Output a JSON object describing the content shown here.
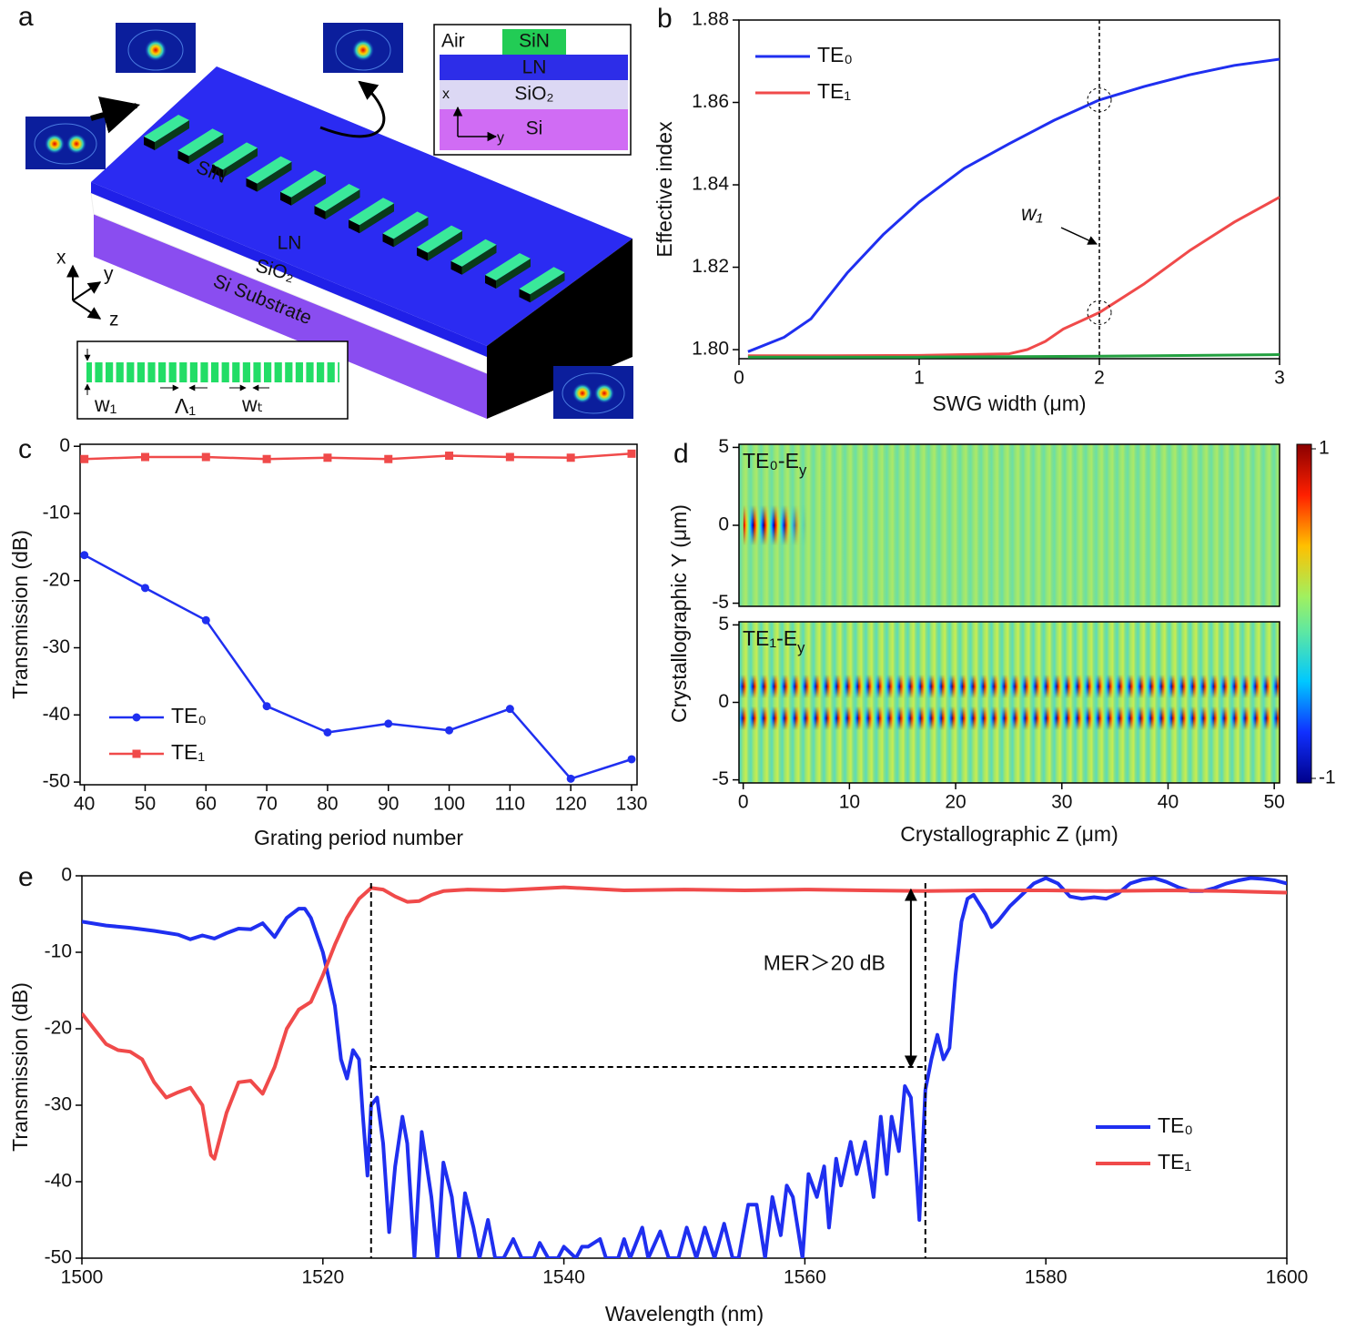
{
  "diagram": {
    "label": "a",
    "cross_section": {
      "air": "Air",
      "sin": "SiN",
      "ln": "LN",
      "sio2": "SiO₂",
      "si": "Si",
      "x": "x",
      "y": "y"
    },
    "device": {
      "sin": "SiN",
      "ln": "LN",
      "sio2": "SiO₂",
      "substrate": "Si Substrate"
    },
    "axes": {
      "x": "x",
      "y": "y",
      "z": "z"
    },
    "inset": {
      "w1": "w₁",
      "period": "Λ₁",
      "wt": "wₜ"
    }
  },
  "chart_data": [
    {
      "type": "line",
      "label": "b",
      "x_label": "SWG width (μm)",
      "y_label": "Effective index",
      "xlim": [
        0,
        3
      ],
      "xticks": [
        0,
        1,
        2,
        3
      ],
      "ylim": [
        1.7978,
        1.88
      ],
      "yticks": [
        {
          "value": 1.8,
          "label": "1.80"
        },
        1.82,
        1.84,
        1.86,
        1.88
      ],
      "legend": "upper left",
      "vline": 2,
      "annotation": "w₁",
      "series": [
        {
          "name": "TE₀",
          "color": "#1f2ff0",
          "x": [
            0.05,
            0.25,
            0.4,
            0.6,
            0.8,
            1,
            1.25,
            1.5,
            1.75,
            2,
            2.25,
            2.5,
            2.75,
            3
          ],
          "values": [
            1.7995,
            1.803,
            1.8075,
            1.8186,
            1.8279,
            1.8358,
            1.844,
            1.85,
            1.8557,
            1.8606,
            1.8639,
            1.8667,
            1.869,
            1.8705
          ]
        },
        {
          "name": "TE₁",
          "color": "#f04a4a",
          "x": [
            0.05,
            0.5,
            1,
            1.5,
            1.6,
            1.7,
            1.8,
            1.9,
            2,
            2.25,
            2.5,
            2.75,
            3
          ],
          "values": [
            1.7985,
            1.7985,
            1.7986,
            1.799,
            1.8,
            1.802,
            1.805,
            1.807,
            1.809,
            1.816,
            1.824,
            1.831,
            1.837
          ]
        },
        {
          "color": "#22a040",
          "x": [
            0.05,
            1,
            2,
            3
          ],
          "values": [
            1.7982,
            1.7982,
            1.7984,
            1.7988
          ]
        }
      ]
    },
    {
      "type": "line",
      "label": "c",
      "x_label": "Grating period number",
      "y_label": "Transmission (dB)",
      "xlim": [
        39.3,
        130.9
      ],
      "xticks": [
        40,
        50,
        60,
        70,
        80,
        90,
        100,
        110,
        120,
        130
      ],
      "ylim": [
        -50.4,
        0.3
      ],
      "yticks": [
        0,
        -10,
        -20,
        -30,
        -40,
        -50
      ],
      "legend": "lower left",
      "x": [
        40,
        50,
        60,
        70,
        80,
        90,
        100,
        110,
        120,
        130
      ],
      "series": [
        {
          "name": "TE₀",
          "color": "#1f2ff0",
          "marker": "circle",
          "values": [
            -16.2,
            -21.1,
            -25.9,
            -38.7,
            -42.6,
            -41.3,
            -42.3,
            -39.1,
            -49.5,
            -46.6
          ]
        },
        {
          "name": "TE₁",
          "color": "#f04a4a",
          "marker": "square",
          "values": [
            -1.9,
            -1.6,
            -1.6,
            -1.9,
            -1.7,
            -1.9,
            -1.4,
            -1.6,
            -1.7,
            -1.1
          ]
        }
      ]
    },
    {
      "type": "heatmap",
      "label": "d",
      "x_label": "Crystallographic Z  (μm)",
      "y_label": "Crystallographic Y  (μm)",
      "xlim": [
        -0.4,
        50.5
      ],
      "xticks": [
        0,
        10,
        20,
        30,
        40,
        50
      ],
      "ylim": [
        -5.2,
        5.2
      ],
      "yticks": [
        -5,
        0,
        5
      ],
      "panels": [
        {
          "title": {
            "text": "TE₀-E",
            "sub": "y"
          }
        },
        {
          "title": {
            "text": "TE₁-E",
            "sub": "y"
          }
        }
      ],
      "colorbar": {
        "lim": [
          -1,
          1
        ],
        "ticks": [
          -1,
          1
        ]
      }
    },
    {
      "type": "line",
      "label": "e",
      "x_label": "Wavelength (nm)",
      "y_label": "Transmission (dB)",
      "xlim": [
        1500,
        1600
      ],
      "xticks": [
        1500,
        1520,
        1540,
        1560,
        1580,
        1600
      ],
      "ylim": [
        -50,
        0
      ],
      "yticks": [
        0,
        -10,
        -20,
        -30,
        -40,
        -50
      ],
      "legend": "lower right",
      "vlines": [
        1524,
        1570
      ],
      "hline": -25,
      "arrow": {
        "x": 1568.8,
        "y": [
          -1.8,
          -25
        ]
      },
      "annotation": "MER＞20 dB",
      "series": [
        {
          "name": "TE₀",
          "color": "#1f2ff0",
          "x": [
            1500,
            1502,
            1504,
            1506,
            1508,
            1509,
            1510,
            1511,
            1512,
            1513,
            1514,
            1515,
            1516,
            1517,
            1518,
            1518.5,
            1519,
            1520,
            1521,
            1521.5,
            1522,
            1522.5,
            1523,
            1523.3,
            1523.7,
            1524,
            1524.5,
            1525,
            1525.5,
            1526,
            1526.6,
            1527,
            1527.6,
            1528.2,
            1529,
            1529.5,
            1530,
            1530.7,
            1531.3,
            1531.8,
            1532.5,
            1533,
            1533.7,
            1534.3,
            1535,
            1535.8,
            1536.5,
            1537.5,
            1538,
            1538.7,
            1539.5,
            1540,
            1541,
            1541.5,
            1542,
            1543,
            1543.5,
            1544.5,
            1545,
            1545.5,
            1546.5,
            1547,
            1548,
            1548.7,
            1549.5,
            1550.2,
            1551,
            1551.7,
            1552.5,
            1553.3,
            1554,
            1554.5,
            1555.3,
            1556,
            1556.7,
            1557.3,
            1558,
            1558.5,
            1559,
            1559.8,
            1560.3,
            1561,
            1561.6,
            1562,
            1562.6,
            1563,
            1563.8,
            1564.3,
            1565,
            1565.7,
            1566.3,
            1566.8,
            1567.2,
            1567.8,
            1568.3,
            1568.8,
            1569.3,
            1569.5,
            1570,
            1570.5,
            1571,
            1571.5,
            1572,
            1572.5,
            1573,
            1573.5,
            1574,
            1575,
            1575.5,
            1576,
            1577,
            1578,
            1579,
            1580,
            1581,
            1582,
            1583,
            1584,
            1585,
            1586,
            1587,
            1588,
            1589,
            1590,
            1591,
            1592,
            1593,
            1594,
            1595,
            1596,
            1597,
            1598,
            1599,
            1600
          ],
          "values": [
            -6,
            -6.5,
            -6.8,
            -7.2,
            -7.7,
            -8.3,
            -7.8,
            -8.2,
            -7.5,
            -6.9,
            -7,
            -6.2,
            -8,
            -5.5,
            -4.3,
            -4.3,
            -5.5,
            -10,
            -17,
            -24,
            -26.5,
            -22.8,
            -24,
            -31,
            -39.2,
            -30,
            -29,
            -35,
            -46.6,
            -38,
            -31.5,
            -35,
            -50,
            -33.5,
            -42,
            -50,
            -37.5,
            -42,
            -50,
            -41.5,
            -46,
            -50,
            -45,
            -50,
            -50,
            -47.5,
            -50,
            -50,
            -48,
            -50,
            -50,
            -48.5,
            -50,
            -48.5,
            -48.5,
            -47.5,
            -50,
            -50,
            -47.5,
            -50,
            -46,
            -50,
            -46.5,
            -50,
            -50,
            -46,
            -50,
            -46,
            -50,
            -45.5,
            -50,
            -50,
            -43,
            -43,
            -50,
            -42,
            -47,
            -40.5,
            -42,
            -50,
            -39,
            -42,
            -38,
            -46,
            -37,
            -40.5,
            -34.8,
            -39,
            -34.8,
            -42,
            -31.5,
            -39,
            -31.5,
            -36,
            -27.5,
            -29,
            -40,
            -45,
            -28,
            -24,
            -20.8,
            -24,
            -22.5,
            -13,
            -6,
            -3,
            -2.5,
            -5,
            -6.7,
            -6,
            -4,
            -2.5,
            -1,
            -0.3,
            -1,
            -2.7,
            -3,
            -2.8,
            -3,
            -2.3,
            -1,
            -0.5,
            -0.3,
            -0.8,
            -1.5,
            -2,
            -2,
            -1.6,
            -1,
            -0.6,
            -0.3,
            -0.4,
            -0.6,
            -1
          ]
        },
        {
          "name": "TE₁",
          "color": "#f04a4a",
          "x": [
            1500,
            1501,
            1502,
            1503,
            1504,
            1505,
            1506,
            1507,
            1508,
            1509,
            1510,
            1510.7,
            1511,
            1512,
            1513,
            1514,
            1515,
            1516,
            1517,
            1518,
            1519,
            1520,
            1521,
            1522,
            1523,
            1524,
            1525,
            1526,
            1527,
            1528,
            1529,
            1530,
            1532,
            1535,
            1540,
            1545,
            1550,
            1555,
            1560,
            1565,
            1570,
            1575,
            1580,
            1585,
            1590,
            1595,
            1600
          ],
          "values": [
            -18,
            -20,
            -22,
            -22.8,
            -23,
            -24,
            -27,
            -29,
            -28.3,
            -27.7,
            -30,
            -36.5,
            -37,
            -31,
            -27,
            -26.8,
            -28.5,
            -25,
            -20,
            -17.5,
            -16.5,
            -13,
            -9,
            -5.5,
            -3,
            -1.6,
            -1.8,
            -2.7,
            -3.4,
            -3.3,
            -2.5,
            -2,
            -1.8,
            -1.9,
            -1.5,
            -1.9,
            -1.8,
            -1.9,
            -1.8,
            -1.9,
            -2,
            -1.9,
            -1.9,
            -2,
            -1.9,
            -2,
            -2.2
          ]
        }
      ]
    }
  ]
}
